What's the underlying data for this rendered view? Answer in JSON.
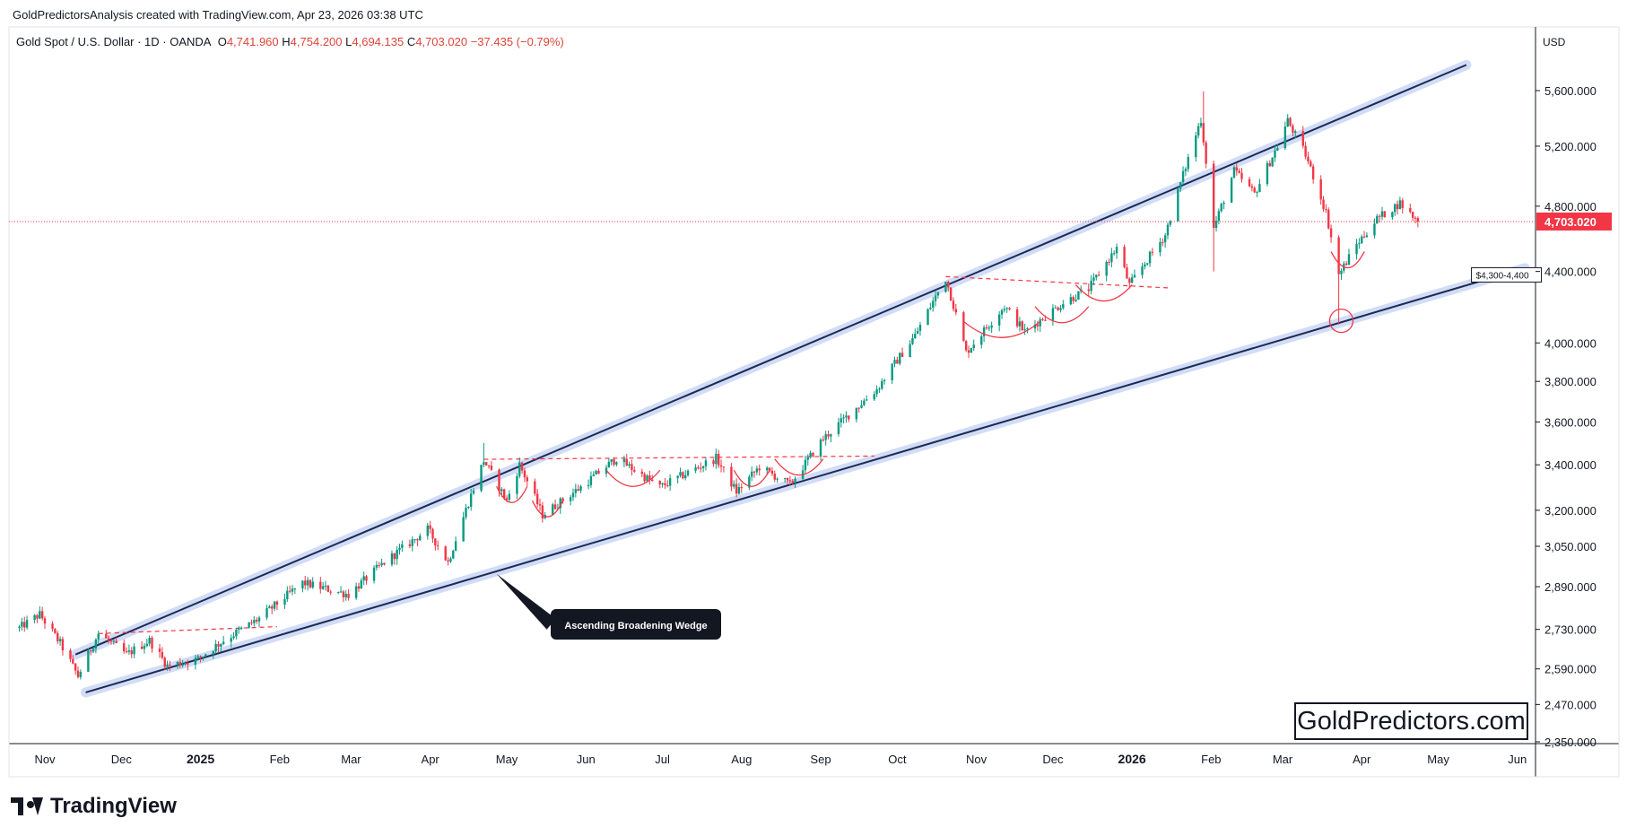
{
  "header": {
    "credit": "GoldPredictorsAnalysis created with TradingView.com, Apr 23, 2026 03:38 UTC",
    "symbol": "Gold Spot / U.S. Dollar · 1D · OANDA",
    "open_label": "O",
    "open": "4,741.960",
    "high_label": "H",
    "high": "4,754.200",
    "low_label": "L",
    "low": "4,694.135",
    "close_label": "C",
    "close": "4,703.020",
    "change": "−37.435 (−0.79%)",
    "currency": "USD"
  },
  "colors": {
    "up": "#089981",
    "down": "#f23645",
    "wedge_line": "#1e2a52",
    "wedge_glow": "#c6d3f5",
    "annotation_red": "#f23645",
    "price_tag": "#f23645"
  },
  "chart_data": {
    "type": "candlestick",
    "ylim": [
      2350,
      5850
    ],
    "y_scale": "log",
    "current_price": 4703.02,
    "current_price_label": "4,703.020",
    "y_ticks": [
      {
        "value": 5600,
        "label": "5,600.000"
      },
      {
        "value": 5200,
        "label": "5,200.000"
      },
      {
        "value": 4800,
        "label": "4,800.000"
      },
      {
        "value": 4400,
        "label": "4,400.000"
      },
      {
        "value": 4000,
        "label": "4,000.000"
      },
      {
        "value": 3800,
        "label": "3,800.000"
      },
      {
        "value": 3600,
        "label": "3,600.000"
      },
      {
        "value": 3400,
        "label": "3,400.000"
      },
      {
        "value": 3200,
        "label": "3,200.000"
      },
      {
        "value": 3050,
        "label": "3,050.000"
      },
      {
        "value": 2890,
        "label": "2,890.000"
      },
      {
        "value": 2730,
        "label": "2,730.000"
      },
      {
        "value": 2590,
        "label": "2,590.000"
      },
      {
        "value": 2470,
        "label": "2,470.000"
      },
      {
        "value": 2350,
        "label": "2,350.000"
      }
    ],
    "x_ticks": [
      {
        "date": "2024-11-01",
        "label": "Nov",
        "bold": false
      },
      {
        "date": "2024-12-01",
        "label": "Dec",
        "bold": false
      },
      {
        "date": "2025-01-01",
        "label": "2025",
        "bold": true
      },
      {
        "date": "2025-02-01",
        "label": "Feb",
        "bold": false
      },
      {
        "date": "2025-03-01",
        "label": "Mar",
        "bold": false
      },
      {
        "date": "2025-04-01",
        "label": "Apr",
        "bold": false
      },
      {
        "date": "2025-05-01",
        "label": "May",
        "bold": false
      },
      {
        "date": "2025-06-01",
        "label": "Jun",
        "bold": false
      },
      {
        "date": "2025-07-01",
        "label": "Jul",
        "bold": false
      },
      {
        "date": "2025-08-01",
        "label": "Aug",
        "bold": false
      },
      {
        "date": "2025-09-01",
        "label": "Sep",
        "bold": false
      },
      {
        "date": "2025-10-01",
        "label": "Oct",
        "bold": false
      },
      {
        "date": "2025-11-01",
        "label": "Nov",
        "bold": false
      },
      {
        "date": "2025-12-01",
        "label": "Dec",
        "bold": false
      },
      {
        "date": "2026-01-01",
        "label": "2026",
        "bold": true
      },
      {
        "date": "2026-02-01",
        "label": "Feb",
        "bold": false
      },
      {
        "date": "2026-03-01",
        "label": "Mar",
        "bold": false
      },
      {
        "date": "2026-04-01",
        "label": "Apr",
        "bold": false
      },
      {
        "date": "2026-05-01",
        "label": "May",
        "bold": false
      },
      {
        "date": "2026-06-01",
        "label": "Jun",
        "bold": false
      }
    ],
    "price_path": [
      [
        "2024-10-22",
        2735
      ],
      [
        "2024-10-30",
        2785
      ],
      [
        "2024-11-07",
        2680
      ],
      [
        "2024-11-14",
        2565
      ],
      [
        "2024-11-22",
        2715
      ],
      [
        "2024-12-03",
        2640
      ],
      [
        "2024-12-12",
        2690
      ],
      [
        "2024-12-19",
        2600
      ],
      [
        "2024-12-31",
        2625
      ],
      [
        "2025-01-10",
        2690
      ],
      [
        "2025-01-24",
        2770
      ],
      [
        "2025-02-10",
        2905
      ],
      [
        "2025-02-28",
        2860
      ],
      [
        "2025-03-14",
        2985
      ],
      [
        "2025-03-31",
        3120
      ],
      [
        "2025-04-08",
        2985
      ],
      [
        "2025-04-22",
        3420
      ],
      [
        "2025-05-01",
        3240
      ],
      [
        "2025-05-06",
        3400
      ],
      [
        "2025-05-15",
        3180
      ],
      [
        "2025-05-30",
        3300
      ],
      [
        "2025-06-13",
        3430
      ],
      [
        "2025-06-30",
        3300
      ],
      [
        "2025-07-22",
        3430
      ],
      [
        "2025-07-30",
        3280
      ],
      [
        "2025-08-08",
        3390
      ],
      [
        "2025-08-20",
        3310
      ],
      [
        "2025-09-02",
        3520
      ],
      [
        "2025-09-23",
        3760
      ],
      [
        "2025-10-08",
        4040
      ],
      [
        "2025-10-20",
        4360
      ],
      [
        "2025-10-28",
        3950
      ],
      [
        "2025-11-12",
        4200
      ],
      [
        "2025-11-20",
        4060
      ],
      [
        "2025-12-05",
        4220
      ],
      [
        "2025-12-15",
        4300
      ],
      [
        "2025-12-26",
        4540
      ],
      [
        "2025-12-31",
        4320
      ],
      [
        "2026-01-14",
        4620
      ],
      [
        "2026-01-28",
        5390
      ],
      [
        "2026-02-02",
        4660
      ],
      [
        "2026-02-10",
        5030
      ],
      [
        "2026-02-18",
        4880
      ],
      [
        "2026-02-27",
        5200
      ],
      [
        "2026-03-03",
        5380
      ],
      [
        "2026-03-10",
        5140
      ],
      [
        "2026-03-18",
        4760
      ],
      [
        "2026-03-23",
        4380
      ],
      [
        "2026-03-30",
        4560
      ],
      [
        "2026-04-07",
        4720
      ],
      [
        "2026-04-16",
        4820
      ],
      [
        "2026-04-23",
        4703
      ]
    ],
    "wedge_upper": [
      [
        "2024-11-13",
        2640
      ],
      [
        "2026-05-12",
        5795
      ]
    ],
    "wedge_lower": [
      [
        "2024-11-17",
        2510
      ],
      [
        "2026-06-04",
        4420
      ]
    ],
    "resistance_lines": [
      [
        [
          "2024-11-22",
          2715
        ],
        [
          "2025-01-31",
          2740
        ]
      ],
      [
        [
          "2025-04-22",
          3425
        ],
        [
          "2025-09-22",
          3440
        ]
      ],
      [
        [
          "2025-10-20",
          4370
        ],
        [
          "2026-01-15",
          4305
        ]
      ]
    ],
    "annotations": {
      "pattern_label": "Ascending Broadening Wedge",
      "zone_label": "$4,300-4,400"
    }
  },
  "branding": {
    "site": "GoldPredictors.com",
    "platform": "TradingView"
  }
}
